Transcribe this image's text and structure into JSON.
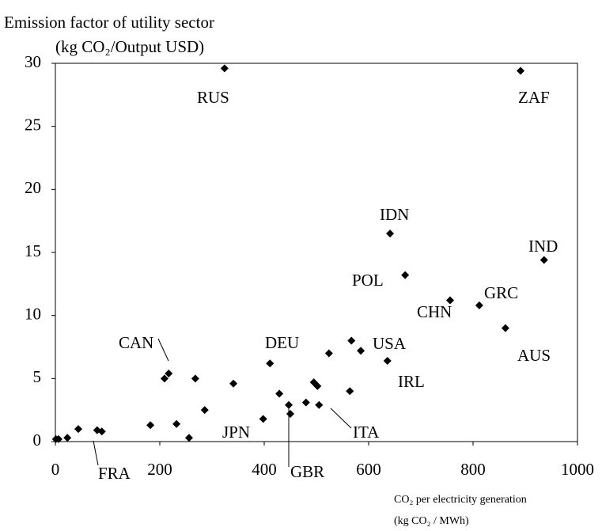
{
  "chart_data": {
    "type": "scatter",
    "title": "Emission factor of utility sector",
    "ylabel": "(kg CO₂/Output USD)",
    "xlabel": [
      "CO₂ per electricity generation",
      "(kg CO₂ / MWh)"
    ],
    "xlim": [
      0,
      1000
    ],
    "ylim": [
      0,
      30
    ],
    "xticks": [
      0,
      200,
      400,
      600,
      800,
      1000
    ],
    "yticks": [
      0,
      5,
      10,
      15,
      20,
      25,
      30
    ],
    "grid": false,
    "color": "#000000",
    "x": [
      1,
      6,
      23,
      44,
      80,
      89,
      182,
      209,
      217,
      232,
      256,
      268,
      286,
      324,
      341,
      398,
      411,
      429,
      447,
      450,
      480,
      495,
      502,
      505,
      524,
      564,
      567,
      585,
      636,
      641,
      670,
      756,
      812,
      862,
      891,
      936
    ],
    "values": [
      0.2,
      0.2,
      0.3,
      1.0,
      0.9,
      0.8,
      1.3,
      5.0,
      5.4,
      1.4,
      0.3,
      5.0,
      2.5,
      29.6,
      4.6,
      1.8,
      6.2,
      3.8,
      2.9,
      2.2,
      3.1,
      4.7,
      4.4,
      2.9,
      7.0,
      4.0,
      8.0,
      7.2,
      6.4,
      16.5,
      13.2,
      11.2,
      10.8,
      9.0,
      29.4,
      14.4
    ],
    "annotations": [
      "RUS",
      "ZAF",
      "IDN",
      "IND",
      "POL",
      "GRC",
      "CHN",
      "CAN",
      "DEU",
      "USA",
      "AUS",
      "IRL",
      "JPN",
      "ITA",
      "GBR",
      "FRA"
    ]
  }
}
